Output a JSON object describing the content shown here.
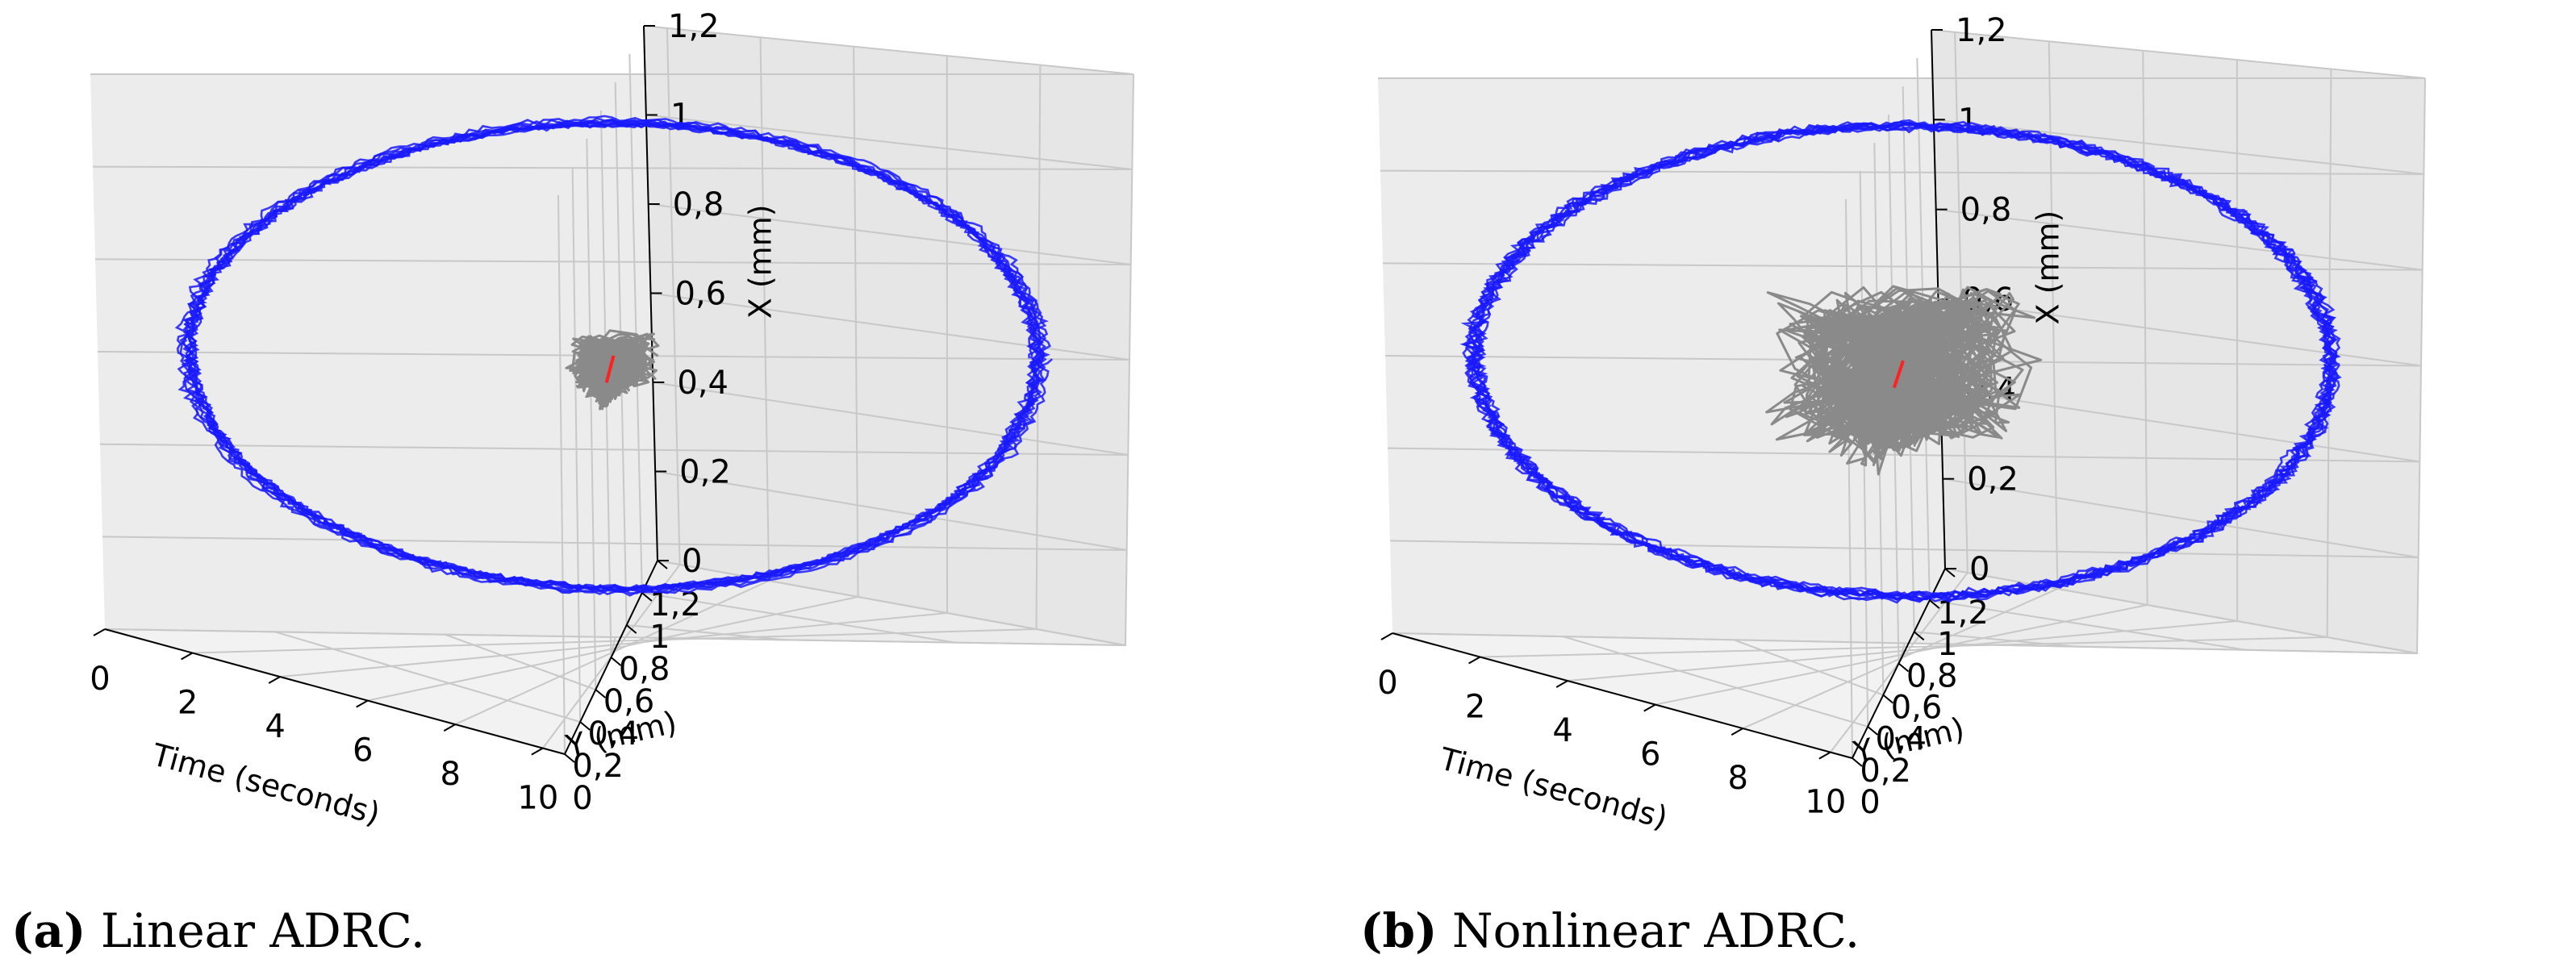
{
  "captions": [
    {
      "tag": "(a)",
      "text": " Linear ADRC."
    },
    {
      "tag": "(b)",
      "text": " Nonlinear ADRC."
    }
  ],
  "colors": {
    "reference": "#ff2020",
    "response": "#8a8a8a",
    "circle": "#1a1aff",
    "pane": "#eeeeee",
    "grid": "#c8c8c8"
  },
  "chart_data": [
    {
      "type": "line",
      "projection": "3d",
      "title": "",
      "caption": "(a) Linear ADRC.",
      "xlabel": "Time (seconds)",
      "ylabel": "Y (mm)",
      "zlabel": "X (mm)",
      "xticks": [
        "0",
        "2",
        "4",
        "6",
        "8",
        "10"
      ],
      "yticks": [
        "0",
        "0,2",
        "0,4",
        "0,6",
        "0,8",
        "1",
        "1,2"
      ],
      "zticks": [
        "0",
        "0,2",
        "0,4",
        "0,6",
        "0,8",
        "1",
        "1,2"
      ],
      "xlim": [
        0,
        10.5
      ],
      "ylim": [
        0,
        1.2
      ],
      "zlim": [
        0,
        1.2
      ],
      "grid": true,
      "noise_level": "low",
      "series": [
        {
          "role": "reference",
          "color": "#ff2020",
          "points": [
            [
              0,
              0.6,
              0.6
            ],
            [
              10,
              0.6,
              0.6
            ]
          ]
        },
        {
          "role": "response",
          "color": "#8a8a8a",
          "center": [
            [
              0,
              0.6,
              0.6
            ],
            [
              10,
              0.6,
              0.6
            ]
          ],
          "spread_mm": 0.04
        },
        {
          "role": "phase-portrait",
          "color": "#1a1aff",
          "center_yx": [
            0.6,
            0.6
          ],
          "radius_mm": 0.5
        }
      ]
    },
    {
      "type": "line",
      "projection": "3d",
      "title": "",
      "caption": "(b) Nonlinear ADRC.",
      "xlabel": "Time (seconds)",
      "ylabel": "Y (mm)",
      "zlabel": "X (mm)",
      "xticks": [
        "0",
        "2",
        "4",
        "6",
        "8",
        "10"
      ],
      "yticks": [
        "0",
        "0,2",
        "0,4",
        "0,6",
        "0,8",
        "1",
        "1,2"
      ],
      "zticks": [
        "0",
        "0,2",
        "0,4",
        "0,6",
        "0,8",
        "1",
        "1,2"
      ],
      "xlim": [
        0,
        10.5
      ],
      "ylim": [
        0,
        1.2
      ],
      "zlim": [
        0,
        1.2
      ],
      "grid": true,
      "noise_level": "high",
      "series": [
        {
          "role": "reference",
          "color": "#ff2020",
          "points": [
            [
              0,
              0.6,
              0.6
            ],
            [
              10,
              0.6,
              0.6
            ]
          ]
        },
        {
          "role": "response",
          "color": "#8a8a8a",
          "center": [
            [
              0,
              0.6,
              0.6
            ],
            [
              10,
              0.6,
              0.6
            ]
          ],
          "spread_mm": 0.12
        },
        {
          "role": "phase-portrait",
          "color": "#1a1aff",
          "center_yx": [
            0.6,
            0.6
          ],
          "radius_mm": 0.5
        }
      ]
    }
  ]
}
